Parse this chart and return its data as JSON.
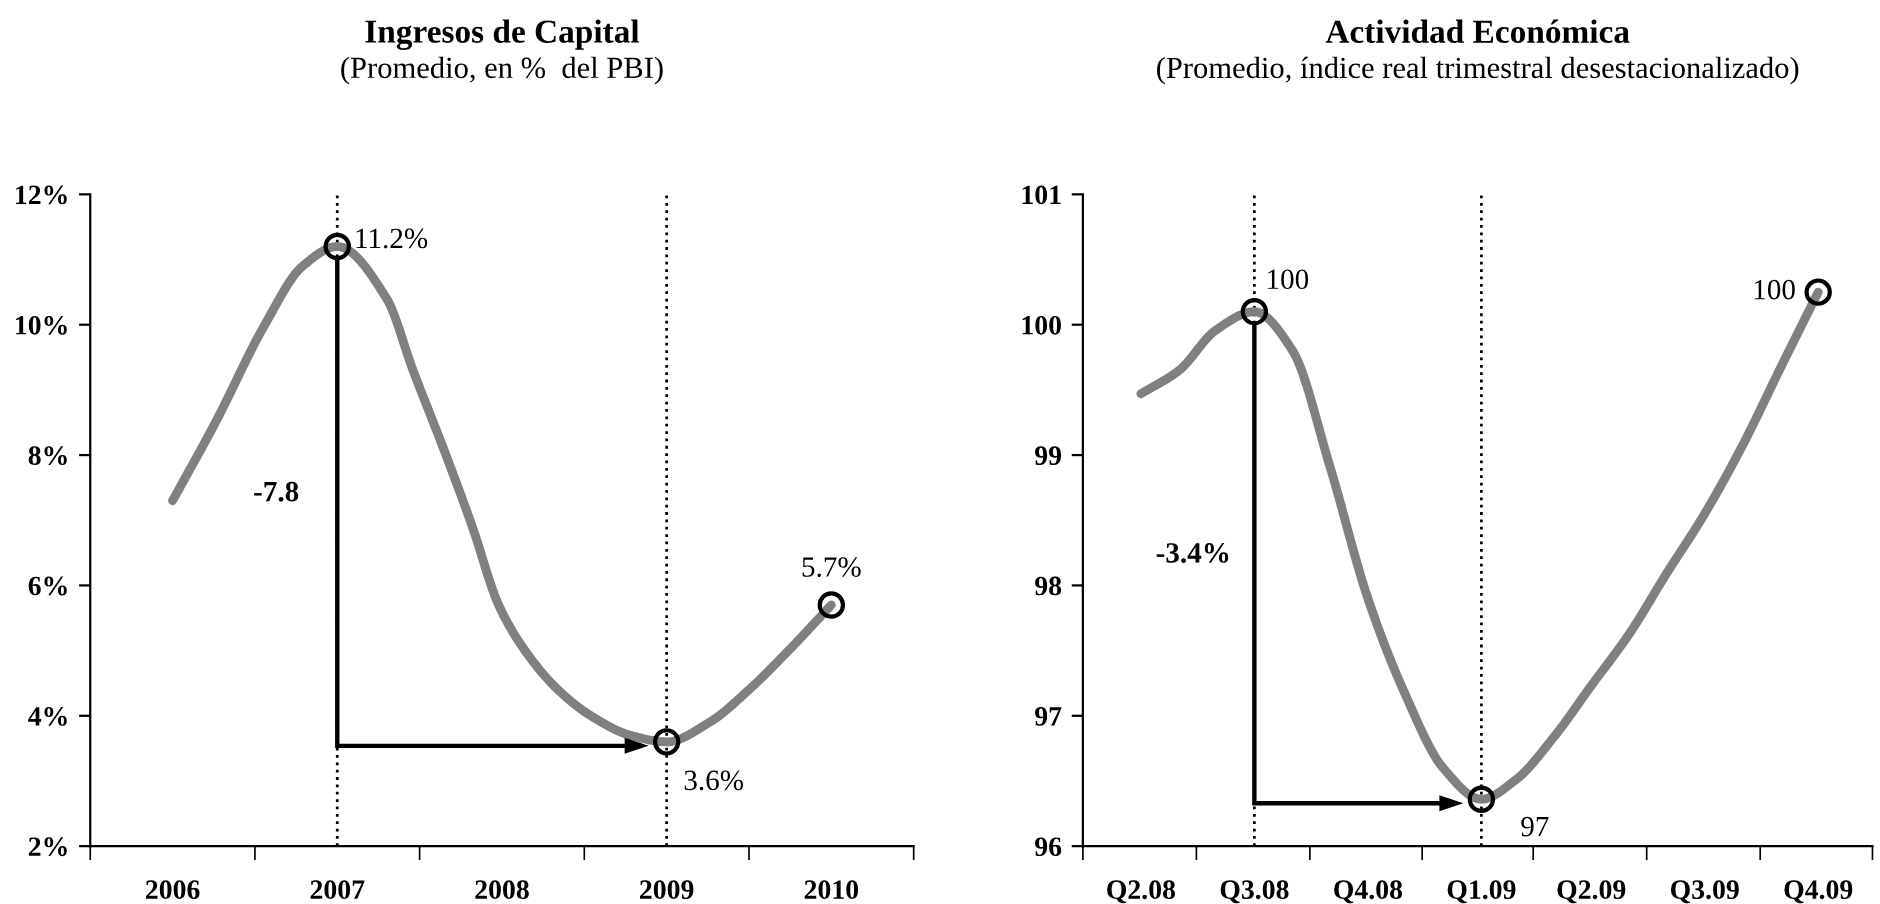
{
  "chart_data": [
    {
      "type": "line",
      "title": "Ingresos de Capital",
      "subtitle": "(Promedio, en %  del PBI)",
      "xlim": [
        2005.5,
        2010.5
      ],
      "xticks": [
        {
          "value": 2005.5,
          "label": null
        },
        {
          "value": 2006,
          "label": "2006"
        },
        {
          "value": 2006.5,
          "label": null
        },
        {
          "value": 2007,
          "label": "2007"
        },
        {
          "value": 2007.5,
          "label": null
        },
        {
          "value": 2008,
          "label": "2008"
        },
        {
          "value": 2008.5,
          "label": null
        },
        {
          "value": 2009,
          "label": "2009"
        },
        {
          "value": 2009.5,
          "label": null
        },
        {
          "value": 2010,
          "label": "2010"
        },
        {
          "value": 2010.5,
          "label": null
        }
      ],
      "ylim": [
        2,
        12
      ],
      "yticks": [
        {
          "value": 2,
          "label": "2%"
        },
        {
          "value": 4,
          "label": "4%"
        },
        {
          "value": 6,
          "label": "6%"
        },
        {
          "value": 8,
          "label": "8%"
        },
        {
          "value": 10,
          "label": "10%"
        },
        {
          "value": 12,
          "label": "12%"
        }
      ],
      "series": [
        {
          "color": "#808080",
          "x": [
            2006,
            2006.26,
            2006.56,
            2006.79,
            2007,
            2007.3,
            2007.46,
            2007.66,
            2007.82,
            2007.98,
            2008.14,
            2008.34,
            2008.54,
            2008.78,
            2009,
            2009.26,
            2009.5,
            2009.74,
            2010
          ],
          "values": [
            7.3,
            8.5,
            10.0,
            10.9,
            11.2,
            10.4,
            9.3,
            8.0,
            6.9,
            5.7,
            5.0,
            4.4,
            4.0,
            3.7,
            3.6,
            3.9,
            4.4,
            5.0,
            5.7
          ]
        },
        {
          "type": "scatter",
          "color": "#000000",
          "marker": "circle",
          "x": [
            2007,
            2009,
            2010
          ],
          "values": [
            11.2,
            3.6,
            5.7
          ]
        }
      ],
      "ref_lines": [
        {
          "axis": "x",
          "value": 2007,
          "line_style": "dotted",
          "color": "#000000"
        },
        {
          "axis": "x",
          "value": 2009,
          "line_style": "dotted",
          "color": "#000000"
        }
      ],
      "annotations": [
        {
          "text": "11.2%",
          "x": 2007,
          "y": 11.2
        },
        {
          "text": "3.6%",
          "x": 2009,
          "y": 3.6
        },
        {
          "text": "5.7%",
          "x": 2010,
          "y": 5.7
        },
        "-7.8"
      ]
    },
    {
      "type": "line",
      "title": "Actividad Económica",
      "subtitle": "(Promedio, índice real trimestral desestacionalizado)",
      "xlim": [
        "2008-03-15",
        "2009-12-15"
      ],
      "xticks": [
        {
          "value": "2008-03-15",
          "label": null
        },
        {
          "value": "2008-05",
          "label": "Q2.08"
        },
        {
          "value": "2008-06-15",
          "label": null
        },
        {
          "value": "2008-08",
          "label": "Q3.08"
        },
        {
          "value": "2008-09-15",
          "label": null
        },
        {
          "value": "2008-11",
          "label": "Q4.08"
        },
        {
          "value": "2008-12-15",
          "label": null
        },
        {
          "value": "2009-02",
          "label": "Q1.09"
        },
        {
          "value": "2009-03-15",
          "label": null
        },
        {
          "value": "2009-05",
          "label": "Q2.09"
        },
        {
          "value": "2009-06-15",
          "label": null
        },
        {
          "value": "2009-08",
          "label": "Q3.09"
        },
        {
          "value": "2009-09-15",
          "label": null
        },
        {
          "value": "2009-11",
          "label": "Q4.09"
        },
        {
          "value": "2009-12-15",
          "label": null
        }
      ],
      "ylim": [
        96,
        101
      ],
      "yticks": [
        96,
        97,
        98,
        99,
        100,
        101
      ],
      "series": [
        {
          "color": "#808080",
          "x": [
            "2008-05",
            "2008-06",
            "2008-07",
            "2008-08",
            "2008-09",
            "2008-10",
            "2008-11",
            "2008-12",
            "2009-01",
            "2009-02",
            "2009-03",
            "2009-04",
            "2009-05",
            "2009-06",
            "2009-07",
            "2009-08",
            "2009-09",
            "2009-10",
            "2009-11"
          ],
          "values": [
            99.47,
            99.65,
            99.96,
            100.1,
            99.8,
            98.92,
            97.9,
            97.17,
            96.6,
            96.36,
            96.51,
            96.84,
            97.23,
            97.63,
            98.09,
            98.55,
            99.08,
            99.66,
            100.25
          ]
        },
        {
          "type": "scatter",
          "color": "#000000",
          "marker": "circle",
          "x": [
            "2008-08",
            "2009-02",
            "2009-11"
          ],
          "values": [
            100.1,
            96.36,
            100.25
          ]
        }
      ],
      "ref_lines": [
        {
          "axis": "x",
          "value": "2008-08",
          "line_style": "dotted",
          "color": "#000000"
        },
        {
          "axis": "x",
          "value": "2009-02",
          "line_style": "dotted",
          "color": "#000000"
        }
      ],
      "annotations": [
        {
          "text": "100",
          "x": "2008-08",
          "y": 100.1
        },
        {
          "text": "97",
          "x": "2009-02",
          "y": 96.36
        },
        {
          "text": "100",
          "x": "2009-11",
          "y": 100.25
        },
        "-3.4%"
      ]
    }
  ]
}
